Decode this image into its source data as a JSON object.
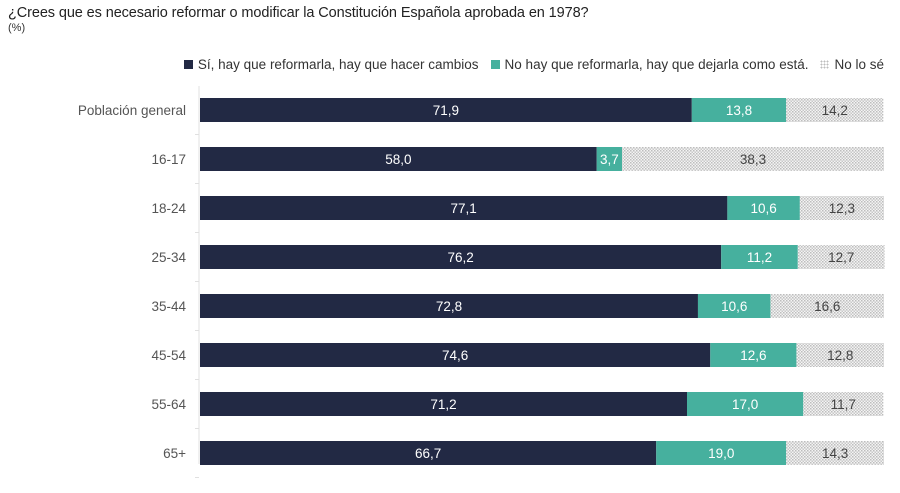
{
  "chart_data": {
    "type": "bar",
    "orientation": "horizontal",
    "stacked": true,
    "title": "¿Crees que es necesario reformar o modificar la Constitución Española aprobada en 1978?",
    "subtitle": "(%)",
    "xlabel": "",
    "ylabel": "",
    "xlim": [
      0,
      100
    ],
    "grid": false,
    "legend_position": "top-right",
    "categories": [
      "Población general",
      "16-17",
      "18-24",
      "25-34",
      "35-44",
      "45-54",
      "55-64",
      "65+"
    ],
    "series": [
      {
        "name": "Sí, hay que reformarla, hay que hacer cambios",
        "color": "#222944",
        "label_color": "#ffffff",
        "pattern": "solid",
        "values": [
          71.9,
          58.0,
          77.1,
          76.2,
          72.8,
          74.6,
          71.2,
          66.7
        ],
        "labels": [
          "71,9",
          "58,0",
          "77,1",
          "76,2",
          "72,8",
          "74,6",
          "71,2",
          "66,7"
        ]
      },
      {
        "name": "No hay que reformarla, hay que dejarla como está.",
        "color": "#46b09e",
        "label_color": "#ffffff",
        "pattern": "solid",
        "values": [
          13.8,
          3.7,
          10.6,
          11.2,
          10.6,
          12.6,
          17.0,
          19.0
        ],
        "labels": [
          "13,8",
          "3,7",
          "10,6",
          "11,2",
          "10,6",
          "12,6",
          "17,0",
          "19,0"
        ]
      },
      {
        "name": "No lo sé",
        "color": "#d9d9d9",
        "label_color": "#444444",
        "pattern": "dotted",
        "values": [
          14.2,
          38.3,
          12.3,
          12.7,
          16.6,
          12.8,
          11.7,
          14.3
        ],
        "labels": [
          "14,2",
          "38,3",
          "12,3",
          "12,7",
          "16,6",
          "12,8",
          "11,7",
          "14,3"
        ]
      }
    ]
  }
}
